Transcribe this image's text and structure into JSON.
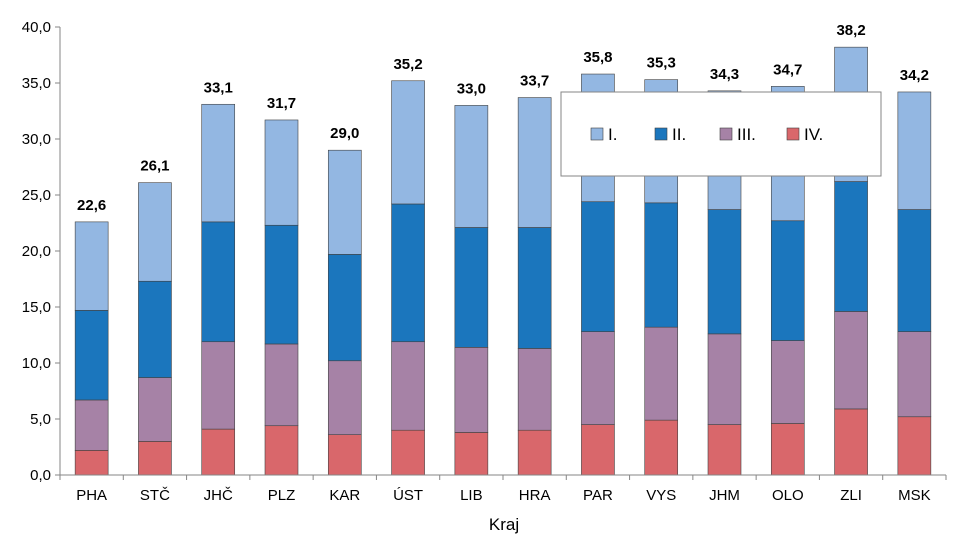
{
  "chart_data": {
    "type": "bar",
    "stacked": true,
    "title": "",
    "xlabel": "Kraj",
    "ylabel": "",
    "ylim": [
      0,
      40
    ],
    "yticks": [
      "0,0",
      "5,0",
      "10,0",
      "15,0",
      "20,0",
      "25,0",
      "30,0",
      "35,0",
      "40,0"
    ],
    "ytick_values": [
      0,
      5,
      10,
      15,
      20,
      25,
      30,
      35,
      40
    ],
    "grid": false,
    "legend_position": "top-right",
    "categories": [
      "PHA",
      "STČ",
      "JHČ",
      "PLZ",
      "KAR",
      "ÚST",
      "LIB",
      "HRA",
      "PAR",
      "VYS",
      "JHM",
      "OLO",
      "ZLI",
      "MSK"
    ],
    "totals": [
      "22,6",
      "26,1",
      "33,1",
      "31,7",
      "29,0",
      "35,2",
      "33,0",
      "33,7",
      "35,8",
      "35,3",
      "34,3",
      "34,7",
      "38,2",
      "34,2"
    ],
    "series": [
      {
        "name": "IV.",
        "color": "#d9676b",
        "values": [
          2.2,
          3.0,
          4.1,
          4.4,
          3.6,
          4.0,
          3.8,
          4.0,
          4.5,
          4.9,
          4.5,
          4.6,
          5.9,
          5.2
        ]
      },
      {
        "name": "III.",
        "color": "#a682a6",
        "values": [
          4.5,
          5.7,
          7.8,
          7.3,
          6.6,
          7.9,
          7.6,
          7.3,
          8.3,
          8.3,
          8.1,
          7.4,
          8.7,
          7.6
        ]
      },
      {
        "name": "II.",
        "color": "#1b76bd",
        "values": [
          8.0,
          8.6,
          10.7,
          10.6,
          9.5,
          12.3,
          10.7,
          10.8,
          11.6,
          11.1,
          11.1,
          10.7,
          11.6,
          10.9
        ]
      },
      {
        "name": "I.",
        "color": "#93b7e2",
        "values": [
          7.9,
          8.8,
          10.5,
          9.4,
          9.3,
          11.0,
          10.9,
          11.6,
          11.4,
          11.0,
          10.6,
          12.0,
          12.0,
          10.5
        ]
      }
    ],
    "legend_order": [
      "I.",
      "II.",
      "III.",
      "IV."
    ]
  }
}
